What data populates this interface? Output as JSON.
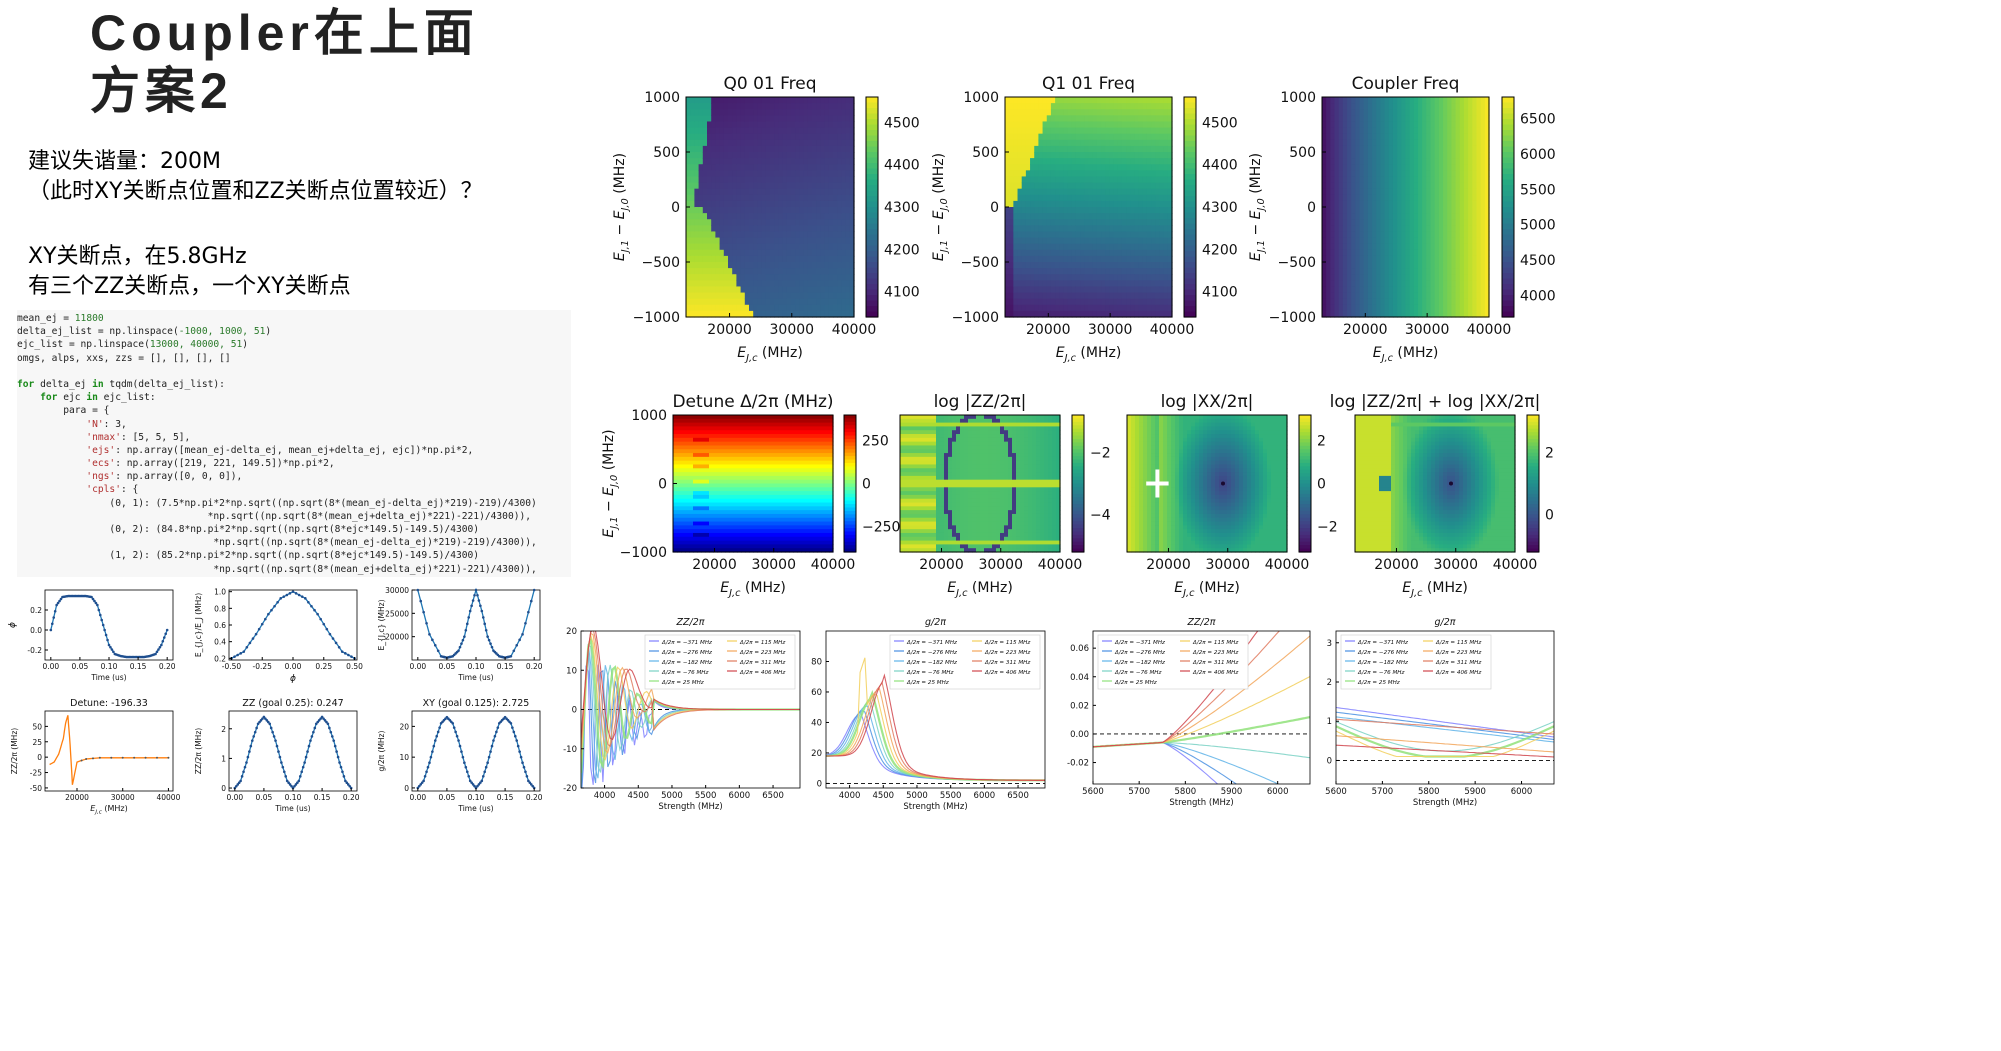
{
  "title_lines": [
    "Coupler在上面",
    "方案2"
  ],
  "notes": {
    "line1": "建议失谐量：200M",
    "line2": "（此时XY关断点位置和ZZ关断点位置较近）？",
    "line3": "XY关断点，在5.8GHz",
    "line4": "有三个ZZ关断点，一个XY关断点"
  },
  "code": {
    "l1a": "mean_ej = ",
    "l1b": "11800",
    "l2a": "delta_ej_list = np.linspace(",
    "l2b": "-1000, 1000, 51",
    "l2c": ")",
    "l3a": "ejc_list = np.linspace(",
    "l3b": "13000, 40000, 51",
    "l3c": ")",
    "l4": "omgs, alps, xxs, zzs = [], [], [], []",
    "l6a": "for",
    "l6b": " delta_ej ",
    "l6c": "in",
    "l6d": " tqdm(delta_ej_list):",
    "l7a": "    for",
    "l7b": " ejc ",
    "l7c": "in",
    "l7d": " ejc_list:",
    "l8": "        para = {",
    "l9a": "            'N'",
    "l9b": ": 3,",
    "l10a": "            'nmax'",
    "l10b": ": [5, 5, 5],",
    "l11a": "            'ejs'",
    "l11b": ": np.array([mean_ej-delta_ej, mean_ej+delta_ej, ejc])*np.pi*2,",
    "l12a": "            'ecs'",
    "l12b": ": np.array([219, 221, 149.5])*np.pi*2,",
    "l13a": "            'ngs'",
    "l13b": ": np.array([0, 0, 0]),",
    "l14a": "            'cpls'",
    "l14b": ": {",
    "l15": "                (0, 1): (7.5*np.pi*2*np.sqrt((np.sqrt(8*(mean_ej-delta_ej)*219)-219)/4300)",
    "l16": "                                 *np.sqrt((np.sqrt(8*(mean_ej+delta_ej)*221)-221)/4300)),",
    "l17": "                (0, 2): (84.8*np.pi*2*np.sqrt((np.sqrt(8*ejc*149.5)-149.5)/4300)",
    "l18": "                                  *np.sqrt((np.sqrt(8*(mean_ej-delta_ej)*219)-219)/4300)),",
    "l19": "                (1, 2): (85.2*np.pi*2*np.sqrt((np.sqrt(8*ejc*149.5)-149.5)/4300)",
    "l20": "                                  *np.sqrt((np.sqrt(8*(mean_ej+delta_ej)*221)-221)/4300)),"
  },
  "colors": {
    "viridis_low": "#440154",
    "viridis_mid": "#21918c",
    "viridis_high": "#fde725",
    "tab_blue": "#1f77b4",
    "tab_orange": "#ff7f0e"
  },
  "chart_data": [
    {
      "id": "h1",
      "type": "heatmap",
      "title": "Q0 01 Freq",
      "xlabel": "E_{J,c} (MHz)",
      "ylabel": "E_{J,1} − E_{J,0} (MHz)",
      "xticks": [
        "20000",
        "30000",
        "40000"
      ],
      "yticks": [
        "1000",
        "500",
        "0",
        "−500",
        "−1000"
      ],
      "cbar_ticks": [
        "4500",
        "4400",
        "4300",
        "4200",
        "4100"
      ],
      "colormap": "viridis"
    },
    {
      "id": "h2",
      "type": "heatmap",
      "title": "Q1 01 Freq",
      "xlabel": "E_{J,c} (MHz)",
      "ylabel": "E_{J,1} − E_{J,0} (MHz)",
      "xticks": [
        "20000",
        "30000",
        "40000"
      ],
      "yticks": [
        "1000",
        "500",
        "0",
        "−500",
        "−1000"
      ],
      "cbar_ticks": [
        "4500",
        "4400",
        "4300",
        "4200",
        "4100"
      ],
      "colormap": "viridis"
    },
    {
      "id": "h3",
      "type": "heatmap",
      "title": "Coupler Freq",
      "xlabel": "E_{J,c} (MHz)",
      "ylabel": "E_{J,1} − E_{J,0} (MHz)",
      "xticks": [
        "20000",
        "30000",
        "40000"
      ],
      "yticks": [
        "1000",
        "500",
        "0",
        "−500",
        "−1000"
      ],
      "cbar_ticks": [
        "6500",
        "6000",
        "5500",
        "5000",
        "4500",
        "4000"
      ],
      "colormap": "viridis"
    },
    {
      "id": "h4",
      "type": "heatmap",
      "title": "Detune Δ/2π (MHz)",
      "xlabel": "E_{J,c} (MHz)",
      "ylabel": "E_{J,1} − E_{J,0} (MHz)",
      "xticks": [
        "20000",
        "30000",
        "40000"
      ],
      "yticks": [
        "1000",
        "0",
        "−1000"
      ],
      "cbar_ticks": [
        "250",
        "0",
        "−250"
      ],
      "colormap": "jet"
    },
    {
      "id": "h5",
      "type": "heatmap",
      "title": "log |ZZ/2π|",
      "xlabel": "E_{J,c} (MHz)",
      "xticks": [
        "20000",
        "30000",
        "40000"
      ],
      "cbar_ticks": [
        "−2",
        "−4"
      ],
      "colormap": "viridis"
    },
    {
      "id": "h6",
      "type": "heatmap",
      "title": "log |XX/2π|",
      "xlabel": "E_{J,c} (MHz)",
      "xticks": [
        "20000",
        "30000",
        "40000"
      ],
      "cbar_ticks": [
        "2",
        "0",
        "−2"
      ],
      "colormap": "viridis"
    },
    {
      "id": "h7",
      "type": "heatmap",
      "title": "log |ZZ/2π| + log |XX/2π|",
      "xlabel": "E_{J,c} (MHz)",
      "xticks": [
        "20000",
        "30000",
        "40000"
      ],
      "cbar_ticks": [
        "2",
        "0"
      ],
      "colormap": "viridis"
    },
    {
      "id": "s1",
      "type": "line",
      "xlabel": "Time (us)",
      "ylabel": "ϕ",
      "xlim": [
        -0.01,
        0.21
      ],
      "ylim": [
        -0.3,
        0.4
      ],
      "xticks": [
        "0.00",
        "0.05",
        "0.10",
        "0.15",
        "0.20"
      ],
      "yticks": [
        "0.2",
        "0.0",
        "-0.2"
      ],
      "x": [
        0.0,
        0.01,
        0.02,
        0.03,
        0.04,
        0.05,
        0.06,
        0.07,
        0.08,
        0.09,
        0.1,
        0.11,
        0.12,
        0.13,
        0.14,
        0.15,
        0.16,
        0.17,
        0.18,
        0.19,
        0.2
      ],
      "values": [
        0.0,
        0.25,
        0.33,
        0.34,
        0.34,
        0.34,
        0.34,
        0.33,
        0.25,
        0.05,
        -0.15,
        -0.24,
        -0.26,
        -0.27,
        -0.27,
        -0.27,
        -0.27,
        -0.26,
        -0.24,
        -0.15,
        0.0
      ]
    },
    {
      "id": "s2",
      "type": "line",
      "xlabel": "ϕ",
      "ylabel": "E_{J,c}/E_J (MHz)",
      "xlim": [
        -0.52,
        0.52
      ],
      "ylim": [
        0.18,
        1.02
      ],
      "xticks": [
        "-0.50",
        "-0.25",
        "0.00",
        "0.25",
        "0.50"
      ],
      "yticks": [
        "1.0",
        "0.8",
        "0.6",
        "0.4",
        "0.2"
      ],
      "x": [
        -0.5,
        -0.4,
        -0.3,
        -0.2,
        -0.1,
        0.0,
        0.1,
        0.2,
        0.3,
        0.4,
        0.5
      ],
      "values": [
        0.2,
        0.28,
        0.49,
        0.73,
        0.92,
        1.0,
        0.92,
        0.73,
        0.49,
        0.28,
        0.2
      ]
    },
    {
      "id": "s3",
      "type": "line",
      "xlabel": "Time (us)",
      "ylabel": "E_{J,c} (MHz)",
      "xlim": [
        -0.01,
        0.21
      ],
      "ylim": [
        15000,
        30000
      ],
      "xticks": [
        "0.00",
        "0.05",
        "0.10",
        "0.15",
        "0.20"
      ],
      "yticks": [
        "30000",
        "25000",
        "20000"
      ],
      "x": [
        0.0,
        0.02,
        0.04,
        0.05,
        0.06,
        0.07,
        0.08,
        0.09,
        0.1,
        0.11,
        0.12,
        0.13,
        0.14,
        0.15,
        0.16,
        0.18,
        0.2
      ],
      "values": [
        30000,
        20500,
        15800,
        15500,
        15800,
        17000,
        20000,
        25500,
        30000,
        25500,
        20000,
        17000,
        15800,
        15500,
        15800,
        20500,
        30000
      ]
    },
    {
      "id": "s4",
      "type": "line",
      "title": "Detune: -196.33",
      "xlabel": "E_{J,c} (MHz)",
      "ylabel": "ZZ/2π (MHz)",
      "xlim": [
        13000,
        41000
      ],
      "ylim": [
        -55,
        75
      ],
      "xticks": [
        "20000",
        "30000",
        "40000"
      ],
      "yticks": [
        "50",
        "25",
        "0",
        "-25",
        "-50"
      ],
      "x": [
        14000,
        15000,
        16000,
        17000,
        17500,
        18000,
        18500,
        19000,
        20000,
        22000,
        25000,
        30000,
        35000,
        40000
      ],
      "values": [
        -12,
        -8,
        5,
        30,
        55,
        68,
        20,
        -45,
        -8,
        -3,
        -1,
        -1,
        -1,
        -1
      ]
    },
    {
      "id": "s5",
      "type": "line",
      "title": "ZZ (goal 0.25): 0.247",
      "xlabel": "Time (us)",
      "ylabel": "ZZ/2π (MHz)",
      "xlim": [
        -0.01,
        0.21
      ],
      "ylim": [
        -0.1,
        2.6
      ],
      "xticks": [
        "0.00",
        "0.05",
        "0.10",
        "0.15",
        "0.20"
      ],
      "yticks": [
        "2",
        "1",
        "0"
      ],
      "x": [
        0.0,
        0.01,
        0.02,
        0.03,
        0.04,
        0.05,
        0.06,
        0.07,
        0.08,
        0.09,
        0.1,
        0.11,
        0.12,
        0.13,
        0.14,
        0.15,
        0.16,
        0.17,
        0.18,
        0.19,
        0.2
      ],
      "values": [
        0.0,
        0.24,
        0.86,
        1.6,
        2.17,
        2.4,
        2.17,
        1.6,
        0.86,
        0.24,
        0.0,
        0.24,
        0.86,
        1.6,
        2.17,
        2.4,
        2.17,
        1.6,
        0.86,
        0.24,
        0.0
      ]
    },
    {
      "id": "s6",
      "type": "line",
      "title": "XY (goal 0.125): 2.725",
      "xlabel": "Time (us)",
      "ylabel": "g/2π (MHz)",
      "xlim": [
        -0.01,
        0.21
      ],
      "ylim": [
        -1,
        25
      ],
      "xticks": [
        "0.00",
        "0.05",
        "0.10",
        "0.15",
        "0.20"
      ],
      "yticks": [
        "20",
        "10",
        "0"
      ],
      "x": [
        0.0,
        0.01,
        0.02,
        0.03,
        0.04,
        0.05,
        0.06,
        0.07,
        0.08,
        0.09,
        0.1,
        0.11,
        0.12,
        0.13,
        0.14,
        0.15,
        0.16,
        0.17,
        0.18,
        0.19,
        0.2
      ],
      "values": [
        0.0,
        2.3,
        8.2,
        15.4,
        21.0,
        23.0,
        21.0,
        15.4,
        8.2,
        2.3,
        0.0,
        2.3,
        8.2,
        15.4,
        21.0,
        23.0,
        21.0,
        15.4,
        8.2,
        2.3,
        0.0
      ]
    },
    {
      "id": "w1",
      "type": "line",
      "title": "ZZ/2π",
      "xlabel": "Strength (MHz)",
      "xlim": [
        3650,
        6900
      ],
      "ylim": [
        -20,
        20
      ],
      "xticks": [
        "4000",
        "4500",
        "5000",
        "5500",
        "6000",
        "6500"
      ],
      "yticks": [
        "20",
        "10",
        "0",
        "-10",
        "-20"
      ],
      "legend": [
        "Δ/2π = −371 MHz",
        "Δ/2π = −276 MHz",
        "Δ/2π = −182 MHz",
        "Δ/2π = −76 MHz",
        "Δ/2π = 25 MHz",
        "Δ/2π = 115 MHz",
        "Δ/2π = 223 MHz",
        "Δ/2π = 311 MHz",
        "Δ/2π = 406 MHz"
      ]
    },
    {
      "id": "w2",
      "type": "line",
      "title": "g/2π",
      "xlabel": "Strength (MHz)",
      "xlim": [
        3650,
        6900
      ],
      "ylim": [
        -3,
        100
      ],
      "xticks": [
        "4000",
        "4500",
        "5000",
        "5500",
        "6000",
        "6500"
      ],
      "yticks": [
        "80",
        "60",
        "40",
        "20",
        "0"
      ],
      "legend": [
        "Δ/2π = −371 MHz",
        "Δ/2π = −276 MHz",
        "Δ/2π = −182 MHz",
        "Δ/2π = −76 MHz",
        "Δ/2π = 25 MHz",
        "Δ/2π = 115 MHz",
        "Δ/2π = 223 MHz",
        "Δ/2π = 311 MHz",
        "Δ/2π = 406 MHz"
      ]
    },
    {
      "id": "w3",
      "type": "line",
      "title": "ZZ/2π",
      "xlabel": "Strength (MHz)",
      "xlim": [
        5600,
        6070
      ],
      "ylim": [
        -0.035,
        0.072
      ],
      "xticks": [
        "5600",
        "5700",
        "5800",
        "5900",
        "6000"
      ],
      "yticks": [
        "0.06",
        "0.04",
        "0.02",
        "0.00",
        "-0.02"
      ],
      "legend": [
        "Δ/2π = −371 MHz",
        "Δ/2π = −276 MHz",
        "Δ/2π = −182 MHz",
        "Δ/2π = −76 MHz",
        "Δ/2π = 25 MHz",
        "Δ/2π = 115 MHz",
        "Δ/2π = 223 MHz",
        "Δ/2π = 311 MHz",
        "Δ/2π = 406 MHz"
      ]
    },
    {
      "id": "w4",
      "type": "line",
      "title": "g/2π",
      "xlabel": "Strength (MHz)",
      "xlim": [
        5600,
        6070
      ],
      "ylim": [
        -0.6,
        3.3
      ],
      "xticks": [
        "5600",
        "5700",
        "5800",
        "5900",
        "6000"
      ],
      "yticks": [
        "3",
        "2",
        "1",
        "0"
      ],
      "legend": [
        "Δ/2π = −371 MHz",
        "Δ/2π = −276 MHz",
        "Δ/2π = −182 MHz",
        "Δ/2π = −76 MHz",
        "Δ/2π = 25 MHz",
        "Δ/2π = 115 MHz",
        "Δ/2π = 223 MHz",
        "Δ/2π = 311 MHz",
        "Δ/2π = 406 MHz"
      ]
    }
  ]
}
